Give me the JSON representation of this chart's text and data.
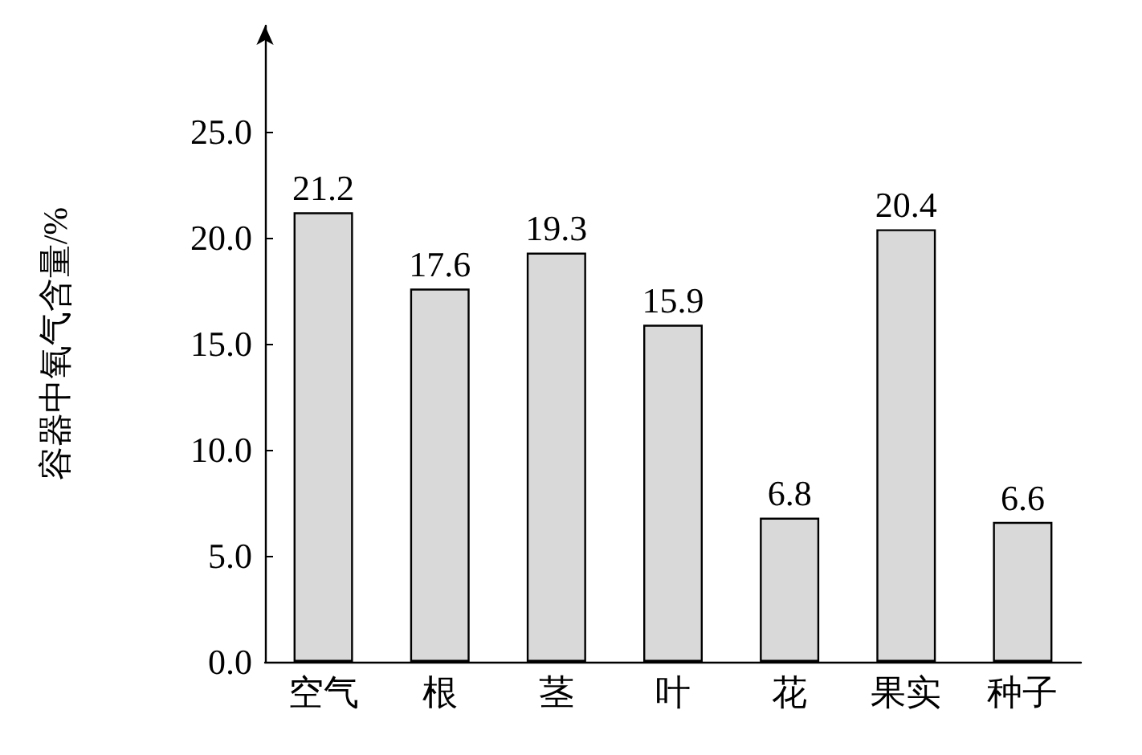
{
  "chart_data": {
    "type": "bar",
    "ylabel": "容器中氧气含量/%",
    "categories": [
      "空气",
      "根",
      "茎",
      "叶",
      "花",
      "果实",
      "种子"
    ],
    "values": [
      21.2,
      17.6,
      19.3,
      15.9,
      6.8,
      20.4,
      6.6
    ],
    "color": "#d9d9d9",
    "ylim": [
      0,
      30
    ],
    "yticks": [
      {
        "value": 0,
        "label": "0.0"
      },
      {
        "value": 5,
        "label": "5.0"
      },
      {
        "value": 10,
        "label": "10.0"
      },
      {
        "value": 15,
        "label": "15.0"
      },
      {
        "value": 20,
        "label": "20.0"
      },
      {
        "value": 25,
        "label": "25.0"
      }
    ],
    "data_labels": true
  }
}
